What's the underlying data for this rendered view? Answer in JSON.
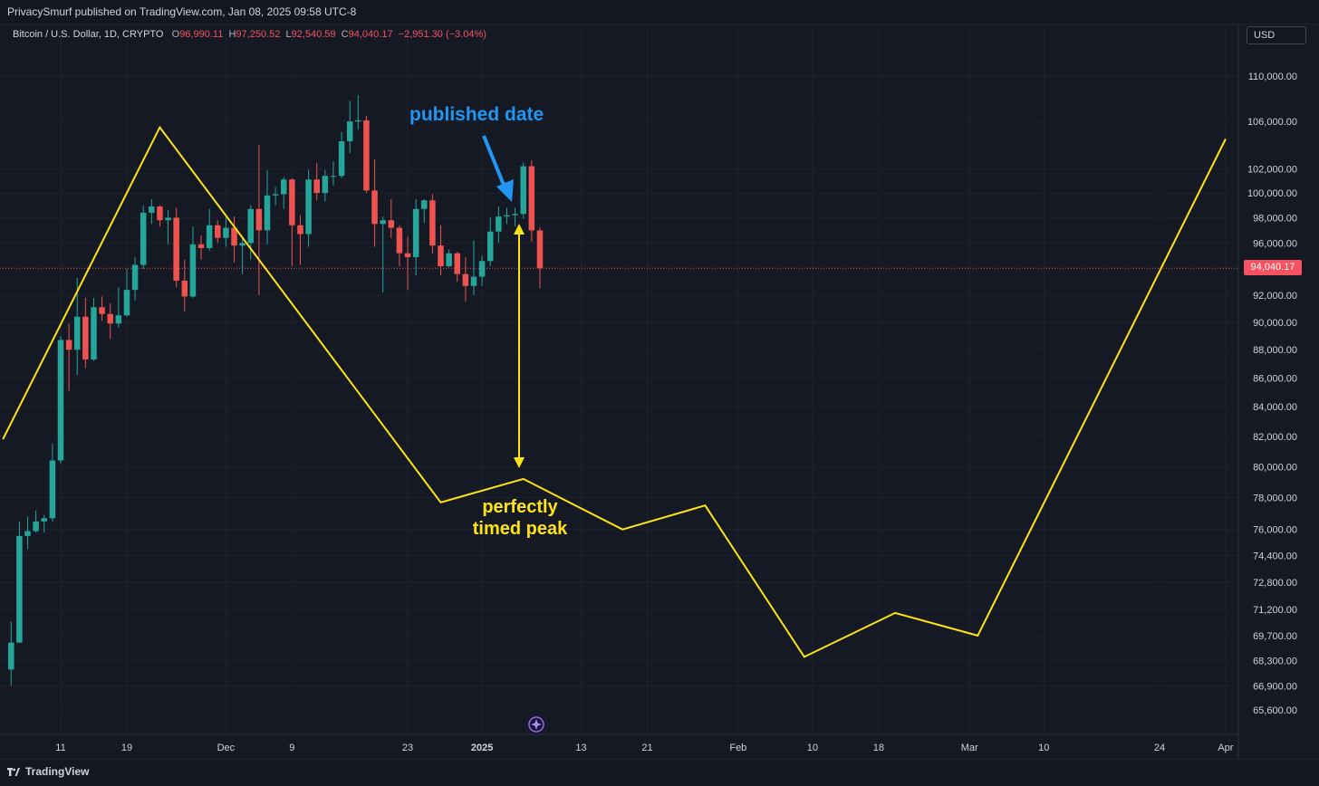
{
  "header": {
    "published_text": "PrivacySmurf published on TradingView.com, Jan 08, 2025 09:58 UTC-8",
    "symbol": "Bitcoin / U.S. Dollar, 1D, CRYPTO",
    "ohlc": {
      "open_label": "O",
      "open": "96,990.11",
      "high_label": "H",
      "high": "97,250.52",
      "low_label": "L",
      "low": "92,540.59",
      "close_label": "C",
      "close": "94,040.17",
      "change": "−2,951.30 (−3.04%)"
    },
    "currency_button": "USD"
  },
  "annotations": {
    "published_date": "published date",
    "perfectly_timed_peak": "perfectly timed peak"
  },
  "last_price": "94,040.17",
  "footer": {
    "brand": "TradingView"
  },
  "colors": {
    "background": "#151924",
    "grid": "#1e222d",
    "candle_up": "#26a69a",
    "candle_down": "#ef5350",
    "projection_line": "#ffe312",
    "annotation_blue": "#2196f3",
    "last_price": "#f7525f",
    "text": "#d1d4dc"
  },
  "chart_data": {
    "type": "candlestick",
    "title": "Bitcoin / U.S. Dollar, 1D, CRYPTO",
    "scale": "log",
    "y_ticks": [
      110000,
      106000,
      102000,
      100000,
      98000,
      96000,
      92000,
      90000,
      88000,
      86000,
      84000,
      82000,
      80000,
      78000,
      76000,
      74400,
      72800,
      71200,
      69700,
      68300,
      66900,
      65600
    ],
    "x_ticks": [
      "11",
      "19",
      "Dec",
      "9",
      "23",
      "2025",
      "13",
      "21",
      "Feb",
      "10",
      "18",
      "Mar",
      "10",
      "24",
      "Apr"
    ],
    "x_tick_dates": [
      "2024-11-11",
      "2024-11-19",
      "2024-12-01",
      "2024-12-09",
      "2024-12-23",
      "2025-01-01",
      "2025-01-13",
      "2025-01-21",
      "2025-02-01",
      "2025-02-10",
      "2025-02-18",
      "2025-03-01",
      "2025-03-10",
      "2025-03-24",
      "2025-04-01"
    ],
    "candles": [
      {
        "date": "2024-11-05",
        "o": 67800,
        "h": 70500,
        "l": 66900,
        "c": 69300
      },
      {
        "date": "2024-11-06",
        "o": 69300,
        "h": 76500,
        "l": 69300,
        "c": 75600
      },
      {
        "date": "2024-11-07",
        "o": 75600,
        "h": 76800,
        "l": 74800,
        "c": 75900
      },
      {
        "date": "2024-11-08",
        "o": 75900,
        "h": 77200,
        "l": 75800,
        "c": 76500
      },
      {
        "date": "2024-11-09",
        "o": 76500,
        "h": 76900,
        "l": 75800,
        "c": 76700
      },
      {
        "date": "2024-11-10",
        "o": 76700,
        "h": 81500,
        "l": 76500,
        "c": 80400
      },
      {
        "date": "2024-11-11",
        "o": 80400,
        "h": 89000,
        "l": 80200,
        "c": 88700
      },
      {
        "date": "2024-11-12",
        "o": 88700,
        "h": 89900,
        "l": 85100,
        "c": 88000
      },
      {
        "date": "2024-11-13",
        "o": 88000,
        "h": 93300,
        "l": 86200,
        "c": 90400
      },
      {
        "date": "2024-11-14",
        "o": 90400,
        "h": 91800,
        "l": 86700,
        "c": 87300
      },
      {
        "date": "2024-11-15",
        "o": 87300,
        "h": 91800,
        "l": 87200,
        "c": 91100
      },
      {
        "date": "2024-11-16",
        "o": 91100,
        "h": 91900,
        "l": 90100,
        "c": 90600
      },
      {
        "date": "2024-11-17",
        "o": 90600,
        "h": 91400,
        "l": 88800,
        "c": 89900
      },
      {
        "date": "2024-11-18",
        "o": 89900,
        "h": 92600,
        "l": 89600,
        "c": 90500
      },
      {
        "date": "2024-11-19",
        "o": 90500,
        "h": 94000,
        "l": 90400,
        "c": 92400
      },
      {
        "date": "2024-11-20",
        "o": 92400,
        "h": 94900,
        "l": 91600,
        "c": 94300
      },
      {
        "date": "2024-11-21",
        "o": 94300,
        "h": 99000,
        "l": 94000,
        "c": 98400
      },
      {
        "date": "2024-11-22",
        "o": 98400,
        "h": 99500,
        "l": 97500,
        "c": 98900
      },
      {
        "date": "2024-11-23",
        "o": 98900,
        "h": 99000,
        "l": 97300,
        "c": 97800
      },
      {
        "date": "2024-11-24",
        "o": 97800,
        "h": 98600,
        "l": 95900,
        "c": 98000
      },
      {
        "date": "2024-11-25",
        "o": 98000,
        "h": 98800,
        "l": 92600,
        "c": 93100
      },
      {
        "date": "2024-11-26",
        "o": 93100,
        "h": 94700,
        "l": 90800,
        "c": 91900
      },
      {
        "date": "2024-11-27",
        "o": 91900,
        "h": 97300,
        "l": 91800,
        "c": 95900
      },
      {
        "date": "2024-11-28",
        "o": 95900,
        "h": 96600,
        "l": 94700,
        "c": 95600
      },
      {
        "date": "2024-11-29",
        "o": 95600,
        "h": 98700,
        "l": 95400,
        "c": 97400
      },
      {
        "date": "2024-11-30",
        "o": 97400,
        "h": 97800,
        "l": 96000,
        "c": 96400
      },
      {
        "date": "2024-12-01",
        "o": 96400,
        "h": 98000,
        "l": 95700,
        "c": 97200
      },
      {
        "date": "2024-12-02",
        "o": 97200,
        "h": 98100,
        "l": 94500,
        "c": 95800
      },
      {
        "date": "2024-12-03",
        "o": 95800,
        "h": 96300,
        "l": 93600,
        "c": 96000
      },
      {
        "date": "2024-12-04",
        "o": 96000,
        "h": 99000,
        "l": 94700,
        "c": 98700
      },
      {
        "date": "2024-12-05",
        "o": 98700,
        "h": 104000,
        "l": 92000,
        "c": 97000
      },
      {
        "date": "2024-12-06",
        "o": 97000,
        "h": 101900,
        "l": 95900,
        "c": 99800
      },
      {
        "date": "2024-12-07",
        "o": 99800,
        "h": 100500,
        "l": 99000,
        "c": 99900
      },
      {
        "date": "2024-12-08",
        "o": 99900,
        "h": 101300,
        "l": 98700,
        "c": 101100
      },
      {
        "date": "2024-12-09",
        "o": 101100,
        "h": 101200,
        "l": 94200,
        "c": 97400
      },
      {
        "date": "2024-12-10",
        "o": 97400,
        "h": 98200,
        "l": 94300,
        "c": 96700
      },
      {
        "date": "2024-12-11",
        "o": 96700,
        "h": 101900,
        "l": 95700,
        "c": 101100
      },
      {
        "date": "2024-12-12",
        "o": 101100,
        "h": 102500,
        "l": 99400,
        "c": 100000
      },
      {
        "date": "2024-12-13",
        "o": 100000,
        "h": 101900,
        "l": 99300,
        "c": 101400
      },
      {
        "date": "2024-12-14",
        "o": 101400,
        "h": 102600,
        "l": 100600,
        "c": 101400
      },
      {
        "date": "2024-12-15",
        "o": 101400,
        "h": 105100,
        "l": 101200,
        "c": 104300
      },
      {
        "date": "2024-12-16",
        "o": 104300,
        "h": 107800,
        "l": 103300,
        "c": 106000
      },
      {
        "date": "2024-12-17",
        "o": 106000,
        "h": 108300,
        "l": 105300,
        "c": 106100
      },
      {
        "date": "2024-12-18",
        "o": 106100,
        "h": 106500,
        "l": 100000,
        "c": 100200
      },
      {
        "date": "2024-12-19",
        "o": 100200,
        "h": 102800,
        "l": 95700,
        "c": 97500
      },
      {
        "date": "2024-12-20",
        "o": 97500,
        "h": 98100,
        "l": 92200,
        "c": 97800
      },
      {
        "date": "2024-12-21",
        "o": 97800,
        "h": 99500,
        "l": 96400,
        "c": 97200
      },
      {
        "date": "2024-12-22",
        "o": 97200,
        "h": 97400,
        "l": 94200,
        "c": 95200
      },
      {
        "date": "2024-12-23",
        "o": 95200,
        "h": 96500,
        "l": 92400,
        "c": 94900
      },
      {
        "date": "2024-12-24",
        "o": 94900,
        "h": 99500,
        "l": 93500,
        "c": 98700
      },
      {
        "date": "2024-12-25",
        "o": 98700,
        "h": 99500,
        "l": 97600,
        "c": 99400
      },
      {
        "date": "2024-12-26",
        "o": 99400,
        "h": 99900,
        "l": 95200,
        "c": 95800
      },
      {
        "date": "2024-12-27",
        "o": 95800,
        "h": 97400,
        "l": 93500,
        "c": 94200
      },
      {
        "date": "2024-12-28",
        "o": 94200,
        "h": 95500,
        "l": 94100,
        "c": 95200
      },
      {
        "date": "2024-12-29",
        "o": 95200,
        "h": 95300,
        "l": 93000,
        "c": 93600
      },
      {
        "date": "2024-12-30",
        "o": 93600,
        "h": 94900,
        "l": 91500,
        "c": 92700
      },
      {
        "date": "2024-12-31",
        "o": 92700,
        "h": 96200,
        "l": 92000,
        "c": 93400
      },
      {
        "date": "2025-01-01",
        "o": 93400,
        "h": 95000,
        "l": 92700,
        "c": 94600
      },
      {
        "date": "2025-01-02",
        "o": 94600,
        "h": 98000,
        "l": 94200,
        "c": 96900
      },
      {
        "date": "2025-01-03",
        "o": 96900,
        "h": 98900,
        "l": 96000,
        "c": 98100
      },
      {
        "date": "2025-01-04",
        "o": 98100,
        "h": 98800,
        "l": 97500,
        "c": 98200
      },
      {
        "date": "2025-01-05",
        "o": 98200,
        "h": 98800,
        "l": 97300,
        "c": 98300
      },
      {
        "date": "2025-01-06",
        "o": 98300,
        "h": 102500,
        "l": 97900,
        "c": 102200
      },
      {
        "date": "2025-01-07",
        "o": 102200,
        "h": 102700,
        "l": 96100,
        "c": 96990.11
      },
      {
        "date": "2025-01-08",
        "o": 96990.11,
        "h": 97250.52,
        "l": 92540.59,
        "c": 94040.17
      }
    ],
    "projection_line": [
      {
        "date": "2024-11-04",
        "value": 81800
      },
      {
        "date": "2024-11-23",
        "value": 105500
      },
      {
        "date": "2024-12-27",
        "value": 77700
      },
      {
        "date": "2025-01-06",
        "value": 79200
      },
      {
        "date": "2025-01-18",
        "value": 76000
      },
      {
        "date": "2025-01-28",
        "value": 77500
      },
      {
        "date": "2025-02-09",
        "value": 68500
      },
      {
        "date": "2025-02-20",
        "value": 71000
      },
      {
        "date": "2025-03-02",
        "value": 69700
      },
      {
        "date": "2025-04-01",
        "value": 104500
      }
    ],
    "annotations": [
      {
        "text": "published date",
        "points_to": "2025-01-05"
      },
      {
        "text": "perfectly timed peak",
        "span_from": 96800,
        "span_to": 79800,
        "date": "2025-01-06"
      }
    ],
    "last_price": 94040.17
  }
}
